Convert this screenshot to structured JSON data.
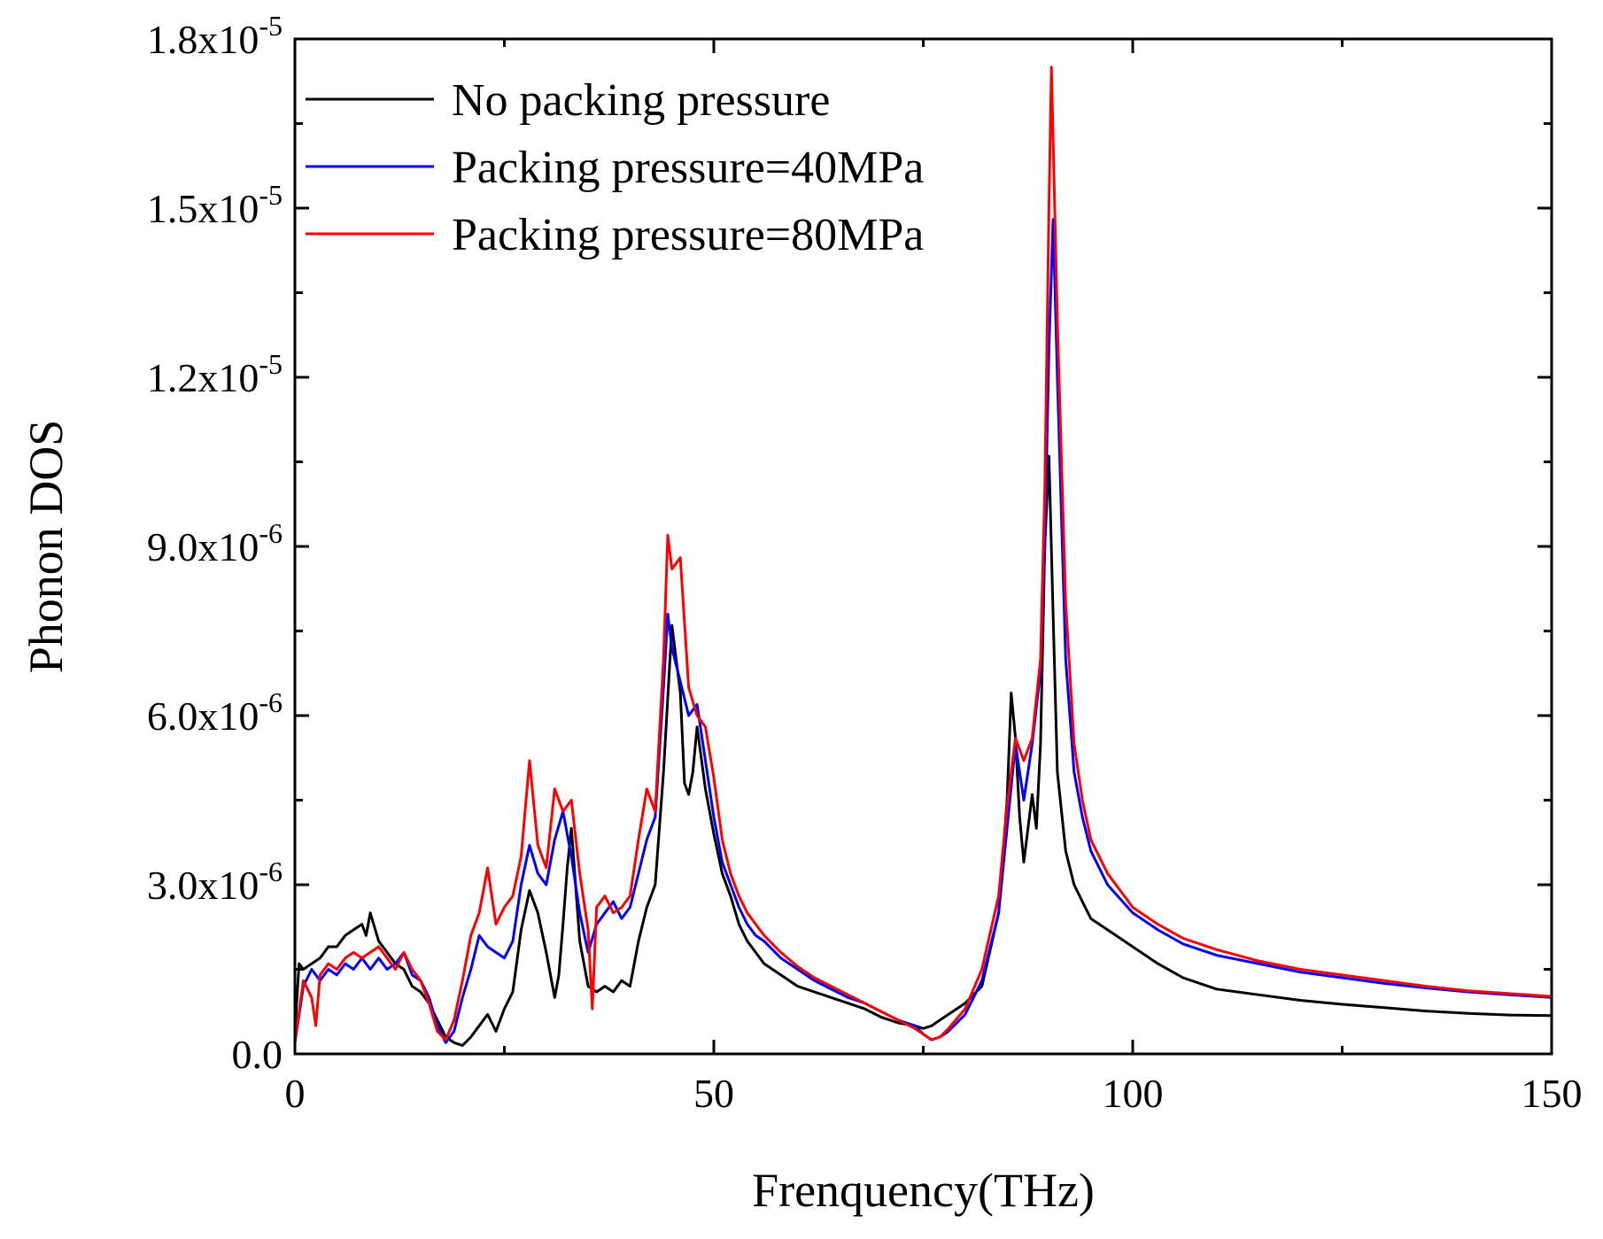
{
  "chart_data": {
    "type": "line",
    "title": "",
    "xlabel": "Frenquency(THz)",
    "ylabel": "Phonon DOS",
    "xlim": [
      0,
      150
    ],
    "ylim": [
      0,
      1.8e-05
    ],
    "xticks": [
      0,
      50,
      100,
      150
    ],
    "xtick_labels": [
      "0",
      "50",
      "100",
      "150"
    ],
    "yticks": [
      0,
      3e-06,
      6e-06,
      9e-06,
      1.2e-05,
      1.5e-05,
      1.8e-05
    ],
    "ytick_labels": [
      {
        "mantissa": "0.0",
        "exp": ""
      },
      {
        "mantissa": "3.0x10",
        "exp": "-6"
      },
      {
        "mantissa": "6.0x10",
        "exp": "-6"
      },
      {
        "mantissa": "9.0x10",
        "exp": "-6"
      },
      {
        "mantissa": "1.2x10",
        "exp": "-5"
      },
      {
        "mantissa": "1.5x10",
        "exp": "-5"
      },
      {
        "mantissa": "1.8x10",
        "exp": "-5"
      }
    ],
    "grid": false,
    "legend_position": "top-left",
    "series": [
      {
        "name": "No packing pressure",
        "color": "#000000",
        "points": [
          [
            0,
            0.4
          ],
          [
            0.5,
            1.6
          ],
          [
            1,
            1.5
          ],
          [
            2,
            1.6
          ],
          [
            3,
            1.7
          ],
          [
            4,
            1.9
          ],
          [
            5,
            1.9
          ],
          [
            6,
            2.1
          ],
          [
            7,
            2.2
          ],
          [
            8,
            2.3
          ],
          [
            8.5,
            2.1
          ],
          [
            9,
            2.5
          ],
          [
            10,
            2.0
          ],
          [
            11,
            1.8
          ],
          [
            12,
            1.6
          ],
          [
            13,
            1.5
          ],
          [
            14,
            1.2
          ],
          [
            15,
            1.1
          ],
          [
            16,
            0.9
          ],
          [
            17,
            0.6
          ],
          [
            18,
            0.3
          ],
          [
            19,
            0.2
          ],
          [
            20,
            0.15
          ],
          [
            21,
            0.3
          ],
          [
            22,
            0.5
          ],
          [
            23,
            0.7
          ],
          [
            24,
            0.4
          ],
          [
            25,
            0.8
          ],
          [
            26,
            1.1
          ],
          [
            27,
            2.2
          ],
          [
            28,
            2.9
          ],
          [
            29,
            2.5
          ],
          [
            30,
            1.8
          ],
          [
            31,
            1.0
          ],
          [
            31.5,
            1.4
          ],
          [
            32,
            2.3
          ],
          [
            32.5,
            3.3
          ],
          [
            33,
            4.0
          ],
          [
            33.5,
            3.0
          ],
          [
            34,
            2.0
          ],
          [
            35,
            1.2
          ],
          [
            36,
            1.1
          ],
          [
            37,
            1.2
          ],
          [
            38,
            1.1
          ],
          [
            39,
            1.3
          ],
          [
            40,
            1.2
          ],
          [
            41,
            2.0
          ],
          [
            42,
            2.6
          ],
          [
            43,
            3.0
          ],
          [
            44,
            5.0
          ],
          [
            45,
            7.6
          ],
          [
            46,
            6.4
          ],
          [
            46.5,
            4.8
          ],
          [
            47,
            4.6
          ],
          [
            47.5,
            5.0
          ],
          [
            48,
            5.8
          ],
          [
            49,
            4.7
          ],
          [
            50,
            3.9
          ],
          [
            51,
            3.2
          ],
          [
            52,
            2.8
          ],
          [
            53,
            2.3
          ],
          [
            54,
            2.0
          ],
          [
            55,
            1.8
          ],
          [
            56,
            1.6
          ],
          [
            58,
            1.4
          ],
          [
            60,
            1.2
          ],
          [
            62,
            1.1
          ],
          [
            64,
            1.0
          ],
          [
            66,
            0.9
          ],
          [
            68,
            0.8
          ],
          [
            70,
            0.65
          ],
          [
            72,
            0.55
          ],
          [
            74,
            0.5
          ],
          [
            75,
            0.45
          ],
          [
            76,
            0.5
          ],
          [
            77,
            0.6
          ],
          [
            78,
            0.7
          ],
          [
            80,
            0.9
          ],
          [
            82,
            1.2
          ],
          [
            84,
            2.5
          ],
          [
            85,
            4.5
          ],
          [
            85.5,
            6.4
          ],
          [
            86,
            5.6
          ],
          [
            86.5,
            4.2
          ],
          [
            87,
            3.4
          ],
          [
            88,
            4.6
          ],
          [
            88.5,
            4.0
          ],
          [
            89,
            5.5
          ],
          [
            89.5,
            9.0
          ],
          [
            90,
            10.6
          ],
          [
            90.5,
            7.8
          ],
          [
            91,
            5.0
          ],
          [
            92,
            3.6
          ],
          [
            93,
            3.0
          ],
          [
            94,
            2.7
          ],
          [
            95,
            2.4
          ],
          [
            97,
            2.2
          ],
          [
            100,
            1.9
          ],
          [
            103,
            1.6
          ],
          [
            106,
            1.35
          ],
          [
            110,
            1.15
          ],
          [
            115,
            1.05
          ],
          [
            120,
            0.95
          ],
          [
            125,
            0.88
          ],
          [
            130,
            0.82
          ],
          [
            135,
            0.76
          ],
          [
            140,
            0.72
          ],
          [
            145,
            0.69
          ],
          [
            150,
            0.68
          ]
        ]
      },
      {
        "name": "Packing pressure=40MPa",
        "color": "#0000ff",
        "points": [
          [
            0,
            0.2
          ],
          [
            1,
            1.2
          ],
          [
            2,
            1.5
          ],
          [
            3,
            1.3
          ],
          [
            4,
            1.5
          ],
          [
            5,
            1.4
          ],
          [
            6,
            1.6
          ],
          [
            7,
            1.5
          ],
          [
            8,
            1.7
          ],
          [
            9,
            1.5
          ],
          [
            10,
            1.7
          ],
          [
            11,
            1.5
          ],
          [
            12,
            1.6
          ],
          [
            13,
            1.8
          ],
          [
            14,
            1.4
          ],
          [
            15,
            1.3
          ],
          [
            16,
            1.0
          ],
          [
            17,
            0.5
          ],
          [
            18,
            0.2
          ],
          [
            19,
            0.4
          ],
          [
            20,
            1.0
          ],
          [
            21,
            1.5
          ],
          [
            22,
            2.1
          ],
          [
            23,
            1.9
          ],
          [
            24,
            1.8
          ],
          [
            25,
            1.7
          ],
          [
            26,
            2.0
          ],
          [
            27,
            3.0
          ],
          [
            28,
            3.7
          ],
          [
            29,
            3.2
          ],
          [
            30,
            3.0
          ],
          [
            31,
            3.8
          ],
          [
            32,
            4.3
          ],
          [
            33,
            3.5
          ],
          [
            34,
            2.5
          ],
          [
            35,
            1.8
          ],
          [
            36,
            2.3
          ],
          [
            37,
            2.5
          ],
          [
            38,
            2.7
          ],
          [
            39,
            2.4
          ],
          [
            40,
            2.6
          ],
          [
            41,
            3.2
          ],
          [
            42,
            3.8
          ],
          [
            43,
            4.2
          ],
          [
            44,
            6.5
          ],
          [
            44.5,
            7.8
          ],
          [
            45,
            7.2
          ],
          [
            46,
            6.6
          ],
          [
            47,
            6.0
          ],
          [
            48,
            6.2
          ],
          [
            49,
            5.2
          ],
          [
            50,
            4.2
          ],
          [
            51,
            3.4
          ],
          [
            52,
            3.0
          ],
          [
            53,
            2.6
          ],
          [
            54,
            2.3
          ],
          [
            55,
            2.1
          ],
          [
            56,
            2.0
          ],
          [
            58,
            1.7
          ],
          [
            60,
            1.5
          ],
          [
            62,
            1.3
          ],
          [
            64,
            1.15
          ],
          [
            66,
            1.0
          ],
          [
            68,
            0.9
          ],
          [
            70,
            0.75
          ],
          [
            72,
            0.6
          ],
          [
            74,
            0.5
          ],
          [
            75,
            0.35
          ],
          [
            76,
            0.25
          ],
          [
            77,
            0.3
          ],
          [
            78,
            0.4
          ],
          [
            80,
            0.7
          ],
          [
            82,
            1.3
          ],
          [
            84,
            2.5
          ],
          [
            85,
            4.0
          ],
          [
            86,
            5.5
          ],
          [
            87,
            4.5
          ],
          [
            88,
            5.5
          ],
          [
            89,
            6.8
          ],
          [
            89.5,
            9.0
          ],
          [
            90,
            12.5
          ],
          [
            90.5,
            14.8
          ],
          [
            91,
            12.0
          ],
          [
            92,
            7.0
          ],
          [
            93,
            5.0
          ],
          [
            94,
            4.2
          ],
          [
            95,
            3.6
          ],
          [
            97,
            3.0
          ],
          [
            100,
            2.5
          ],
          [
            103,
            2.2
          ],
          [
            106,
            1.95
          ],
          [
            110,
            1.75
          ],
          [
            115,
            1.6
          ],
          [
            120,
            1.45
          ],
          [
            125,
            1.35
          ],
          [
            130,
            1.25
          ],
          [
            135,
            1.17
          ],
          [
            140,
            1.1
          ],
          [
            145,
            1.05
          ],
          [
            150,
            1.0
          ]
        ]
      },
      {
        "name": "Packing pressure=80MPa",
        "color": "#ff0000",
        "points": [
          [
            0,
            0.2
          ],
          [
            1,
            1.3
          ],
          [
            2,
            1.0
          ],
          [
            2.5,
            0.5
          ],
          [
            3,
            1.4
          ],
          [
            4,
            1.6
          ],
          [
            5,
            1.5
          ],
          [
            6,
            1.7
          ],
          [
            7,
            1.8
          ],
          [
            8,
            1.7
          ],
          [
            9,
            1.8
          ],
          [
            10,
            1.9
          ],
          [
            11,
            1.7
          ],
          [
            12,
            1.5
          ],
          [
            13,
            1.8
          ],
          [
            14,
            1.5
          ],
          [
            15,
            1.3
          ],
          [
            16,
            0.9
          ],
          [
            17,
            0.4
          ],
          [
            18,
            0.25
          ],
          [
            19,
            0.6
          ],
          [
            20,
            1.3
          ],
          [
            21,
            2.1
          ],
          [
            22,
            2.5
          ],
          [
            23,
            3.3
          ],
          [
            24,
            2.3
          ],
          [
            25,
            2.6
          ],
          [
            26,
            2.8
          ],
          [
            27,
            3.5
          ],
          [
            28,
            5.2
          ],
          [
            29,
            3.7
          ],
          [
            30,
            3.3
          ],
          [
            31,
            4.7
          ],
          [
            32,
            4.3
          ],
          [
            33,
            4.5
          ],
          [
            34,
            3.2
          ],
          [
            35,
            2.2
          ],
          [
            35.5,
            0.8
          ],
          [
            36,
            2.6
          ],
          [
            37,
            2.8
          ],
          [
            38,
            2.5
          ],
          [
            39,
            2.6
          ],
          [
            40,
            2.8
          ],
          [
            41,
            3.8
          ],
          [
            42,
            4.7
          ],
          [
            43,
            4.3
          ],
          [
            44,
            7.0
          ],
          [
            44.5,
            9.2
          ],
          [
            45,
            8.6
          ],
          [
            46,
            8.8
          ],
          [
            47,
            6.5
          ],
          [
            48,
            6.0
          ],
          [
            49,
            5.8
          ],
          [
            50,
            4.9
          ],
          [
            51,
            3.8
          ],
          [
            52,
            3.2
          ],
          [
            53,
            2.8
          ],
          [
            54,
            2.5
          ],
          [
            55,
            2.3
          ],
          [
            56,
            2.1
          ],
          [
            58,
            1.8
          ],
          [
            60,
            1.55
          ],
          [
            62,
            1.35
          ],
          [
            64,
            1.2
          ],
          [
            66,
            1.05
          ],
          [
            68,
            0.9
          ],
          [
            70,
            0.75
          ],
          [
            72,
            0.6
          ],
          [
            74,
            0.45
          ],
          [
            75,
            0.35
          ],
          [
            76,
            0.25
          ],
          [
            77,
            0.3
          ],
          [
            78,
            0.45
          ],
          [
            80,
            0.8
          ],
          [
            82,
            1.5
          ],
          [
            84,
            2.8
          ],
          [
            85,
            4.4
          ],
          [
            86,
            5.6
          ],
          [
            87,
            5.2
          ],
          [
            88,
            5.6
          ],
          [
            89,
            7.0
          ],
          [
            89.5,
            10.0
          ],
          [
            90,
            15.0
          ],
          [
            90.3,
            17.5
          ],
          [
            91,
            13.0
          ],
          [
            92,
            8.0
          ],
          [
            93,
            5.5
          ],
          [
            94,
            4.5
          ],
          [
            95,
            3.8
          ],
          [
            97,
            3.2
          ],
          [
            100,
            2.6
          ],
          [
            103,
            2.3
          ],
          [
            106,
            2.05
          ],
          [
            110,
            1.85
          ],
          [
            115,
            1.65
          ],
          [
            120,
            1.5
          ],
          [
            125,
            1.4
          ],
          [
            130,
            1.3
          ],
          [
            135,
            1.2
          ],
          [
            140,
            1.12
          ],
          [
            145,
            1.07
          ],
          [
            150,
            1.02
          ]
        ]
      }
    ]
  }
}
